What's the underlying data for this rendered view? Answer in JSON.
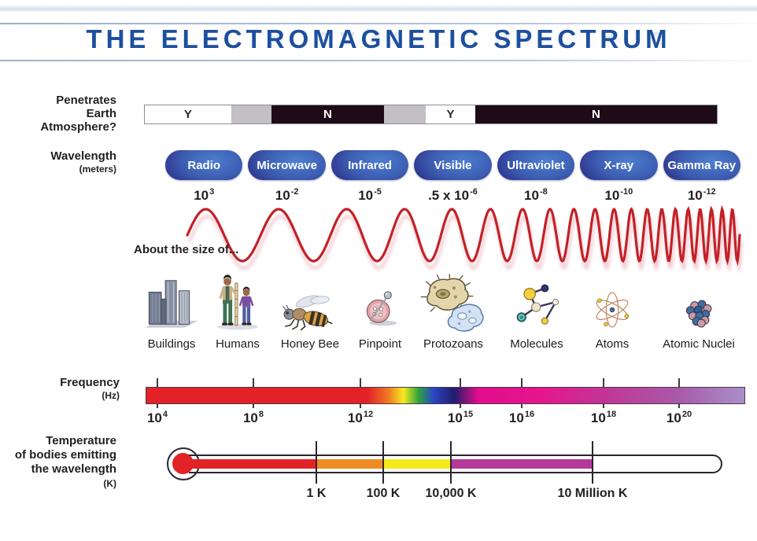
{
  "title": "THE ELECTROMAGNETIC SPECTRUM",
  "penetrates": {
    "label_lines": [
      "Penetrates",
      "Earth",
      "Atmosphere?"
    ],
    "segments": [
      {
        "answer": "Y"
      },
      {
        "answer": ""
      },
      {
        "answer": "N"
      },
      {
        "answer": ""
      },
      {
        "answer": "Y"
      },
      {
        "answer": "N"
      }
    ]
  },
  "wavelength": {
    "label": "Wavelength",
    "unit": "(meters)",
    "bands": [
      {
        "name": "Radio",
        "value_prefix": "",
        "value_base": "10",
        "value_exp": "3"
      },
      {
        "name": "Microwave",
        "value_prefix": "",
        "value_base": "10",
        "value_exp": "-2"
      },
      {
        "name": "Infrared",
        "value_prefix": "",
        "value_base": "10",
        "value_exp": "-5"
      },
      {
        "name": "Visible",
        "value_prefix": ".5 x ",
        "value_base": "10",
        "value_exp": "-6"
      },
      {
        "name": "Ultraviolet",
        "value_prefix": "",
        "value_base": "10",
        "value_exp": "-8"
      },
      {
        "name": "X-ray",
        "value_prefix": "",
        "value_base": "10",
        "value_exp": "-10"
      },
      {
        "name": "Gamma Ray",
        "value_prefix": "",
        "value_base": "10",
        "value_exp": "-12"
      }
    ]
  },
  "size_comparison": {
    "label": "About the size of...",
    "items": [
      {
        "name": "Buildings"
      },
      {
        "name": "Humans"
      },
      {
        "name": "Honey Bee"
      },
      {
        "name": "Pinpoint"
      },
      {
        "name": "Protozoans"
      },
      {
        "name": "Molecules"
      },
      {
        "name": "Atoms"
      },
      {
        "name": "Atomic Nuclei"
      }
    ]
  },
  "frequency": {
    "label": "Frequency",
    "unit": "(Hz)",
    "ticks": [
      {
        "base": "10",
        "exp": "4"
      },
      {
        "base": "10",
        "exp": "8"
      },
      {
        "base": "10",
        "exp": "12"
      },
      {
        "base": "10",
        "exp": "15"
      },
      {
        "base": "10",
        "exp": "16"
      },
      {
        "base": "10",
        "exp": "18"
      },
      {
        "base": "10",
        "exp": "20"
      }
    ]
  },
  "temperature": {
    "label_lines": [
      "Temperature",
      "of bodies emitting",
      "the wavelength",
      "(K)"
    ],
    "ticks": [
      "1 K",
      "100 K",
      "10,000 K",
      "10 Million K"
    ]
  },
  "colors": {
    "title_blue": "#1d4f9e",
    "wave_red": "#c32127",
    "spectrum_red": "#e32227",
    "spectrum_magenta": "#e5168c",
    "spectrum_violet": "#a98fc9",
    "thermo_orange": "#ef8b23",
    "thermo_yellow": "#f5e91c",
    "thermo_magenta": "#b5399b",
    "pill_dark_navy": "#1e1a5e",
    "pill_light_blue": "#4d7fd0",
    "yn_dark": "#1e0b18",
    "yn_gray": "#c3bfc5"
  }
}
